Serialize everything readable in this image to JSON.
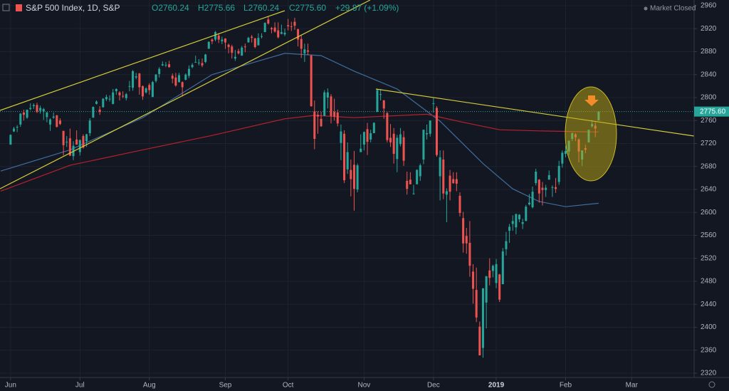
{
  "chart_data": {
    "type": "candlestick",
    "title": "S&P 500 Index, 1D, S&P",
    "ohlc_labels": [
      "O2760.24",
      "H2775.66",
      "L2760.24",
      "C2775.60"
    ],
    "change_label": "+29.87 (+1.09%)",
    "status": "Market Closed",
    "up_color": "#26a69a",
    "down_color": "#ef5350",
    "grid": true,
    "ylim": [
      2320,
      2960
    ],
    "yticks": [
      2320,
      2360,
      2400,
      2440,
      2480,
      2520,
      2560,
      2600,
      2640,
      2680,
      2720,
      2760,
      2800,
      2840,
      2880,
      2920,
      2960
    ],
    "xlim": [
      -3.2,
      206.9
    ],
    "xticks": [
      {
        "value": 0,
        "label": "Jun"
      },
      {
        "value": 21,
        "label": "Jul"
      },
      {
        "value": 42,
        "label": "Aug"
      },
      {
        "value": 65,
        "label": "Sep"
      },
      {
        "value": 84,
        "label": "Oct"
      },
      {
        "value": 107,
        "label": "Nov"
      },
      {
        "value": 128,
        "label": "Dec"
      },
      {
        "value": 147,
        "label": "2019"
      },
      {
        "value": 168,
        "label": "Feb"
      },
      {
        "value": 188,
        "label": "Mar"
      }
    ],
    "price_label": {
      "value": 2775.6,
      "label": "2775.60"
    },
    "open": [
      2718,
      2741,
      2748,
      2753,
      2774,
      2765,
      2780,
      2785,
      2787,
      2777,
      2776,
      2766,
      2753,
      2765,
      2769,
      2760,
      2742,
      2722,
      2729,
      2698,
      2727,
      2705,
      2733,
      2724,
      2738,
      2765,
      2789,
      2779,
      2783,
      2797,
      2797,
      2789,
      2811,
      2809,
      2803,
      2799,
      2820,
      2817,
      2835,
      2842,
      2820,
      2809,
      2822,
      2801,
      2829,
      2841,
      2856,
      2856,
      2858,
      2838,
      2835,
      2827,
      2827,
      2831,
      2838,
      2853,
      2861,
      2860,
      2860,
      2862,
      2885,
      2901,
      2901,
      2908,
      2898,
      2903,
      2892,
      2889,
      2868,
      2881,
      2873,
      2889,
      2896,
      2906,
      2903,
      2891,
      2906,
      2914,
      2936,
      2921,
      2922,
      2917,
      2911,
      2910,
      2926,
      2924,
      2932,
      2919,
      2902,
      2877,
      2882,
      2873,
      2776,
      2770,
      2763,
      2768,
      2800,
      2802,
      2775,
      2774,
      2721,
      2737,
      2675,
      2674,
      2683,
      2640,
      2705,
      2718,
      2745,
      2727,
      2738,
      2775,
      2806,
      2795,
      2773,
      2730,
      2737,
      2693,
      2719,
      2731,
      2655,
      2657,
      2633,
      2649,
      2663,
      2692,
      2736,
      2737,
      2790,
      2782,
      2663,
      2692,
      2631,
      2664,
      2658,
      2658,
      2629,
      2590,
      2559,
      2547,
      2497,
      2465,
      2401,
      2364,
      2443,
      2499,
      2498,
      2477,
      2492,
      2475,
      2536,
      2568,
      2580,
      2574,
      2588,
      2580,
      2585,
      2614,
      2609,
      2651,
      2657,
      2643,
      2639,
      2657,
      2644,
      2644,
      2653,
      2685,
      2702,
      2706,
      2728,
      2736,
      2727,
      2692,
      2712,
      2722,
      2750,
      2751,
      2760.24
    ],
    "high": [
      2736,
      2749,
      2752,
      2773,
      2779,
      2779,
      2790,
      2790,
      2791,
      2786,
      2782,
      2775,
      2764,
      2774,
      2770,
      2764,
      2742,
      2733,
      2746,
      2724,
      2743,
      2727,
      2736,
      2737,
      2764,
      2784,
      2795,
      2785,
      2799,
      2805,
      2804,
      2815,
      2816,
      2811,
      2811,
      2808,
      2829,
      2848,
      2843,
      2843,
      2821,
      2818,
      2825,
      2829,
      2841,
      2853,
      2863,
      2862,
      2864,
      2842,
      2843,
      2843,
      2828,
      2842,
      2856,
      2860,
      2873,
      2867,
      2868,
      2876,
      2898,
      2903,
      2916,
      2912,
      2906,
      2903,
      2894,
      2892,
      2883,
      2885,
      2890,
      2894,
      2906,
      2909,
      2904,
      2912,
      2912,
      2931,
      2941,
      2923,
      2931,
      2931,
      2927,
      2920,
      2937,
      2932,
      2939,
      2920,
      2909,
      2894,
      2894,
      2875,
      2795,
      2776,
      2775,
      2813,
      2816,
      2806,
      2798,
      2779,
      2753,
      2743,
      2722,
      2692,
      2707,
      2685,
      2736,
      2741,
      2756,
      2744,
      2757,
      2815,
      2815,
      2796,
      2775,
      2754,
      2747,
      2735,
      2747,
      2742,
      2671,
      2670,
      2648,
      2675,
      2685,
      2744,
      2753,
      2760,
      2800,
      2785,
      2708,
      2708,
      2642,
      2674,
      2670,
      2670,
      2635,
      2601,
      2573,
      2585,
      2510,
      2504,
      2410,
      2467,
      2489,
      2520,
      2509,
      2519,
      2493,
      2538,
      2566,
      2580,
      2595,
      2598,
      2597,
      2589,
      2613,
      2632,
      2645,
      2676,
      2658,
      2653,
      2648,
      2673,
      2647,
      2660,
      2690,
      2708,
      2716,
      2725,
      2739,
      2738,
      2729,
      2708,
      2718,
      2744,
      2761,
      2757,
      2775.66
    ],
    "low": [
      2718,
      2740,
      2740,
      2749,
      2760,
      2763,
      2778,
      2780,
      2773,
      2772,
      2761,
      2757,
      2742,
      2763,
      2748,
      2752,
      2699,
      2714,
      2698,
      2691,
      2718,
      2699,
      2711,
      2714,
      2733,
      2765,
      2788,
      2770,
      2783,
      2794,
      2793,
      2788,
      2805,
      2795,
      2799,
      2795,
      2811,
      2812,
      2832,
      2805,
      2796,
      2807,
      2805,
      2801,
      2826,
      2835,
      2855,
      2853,
      2852,
      2825,
      2819,
      2826,
      2802,
      2830,
      2834,
      2851,
      2861,
      2856,
      2853,
      2860,
      2885,
      2893,
      2898,
      2895,
      2893,
      2885,
      2877,
      2868,
      2864,
      2875,
      2873,
      2879,
      2896,
      2896,
      2886,
      2891,
      2903,
      2914,
      2927,
      2912,
      2913,
      2903,
      2910,
      2907,
      2917,
      2916,
      2918,
      2889,
      2869,
      2862,
      2874,
      2784,
      2710,
      2737,
      2749,
      2768,
      2781,
      2755,
      2760,
      2750,
      2691,
      2651,
      2667,
      2628,
      2603,
      2635,
      2705,
      2708,
      2700,
      2722,
      2738,
      2775,
      2795,
      2763,
      2722,
      2714,
      2685,
      2670,
      2715,
      2681,
      2631,
      2649,
      2631,
      2649,
      2655,
      2684,
      2727,
      2732,
      2774,
      2697,
      2621,
      2623,
      2583,
      2621,
      2650,
      2637,
      2593,
      2530,
      2528,
      2488,
      2441,
      2409,
      2351,
      2347,
      2398,
      2473,
      2487,
      2468,
      2444,
      2475,
      2525,
      2547,
      2568,
      2562,
      2583,
      2571,
      2585,
      2612,
      2607,
      2647,
      2617,
      2612,
      2627,
      2657,
      2627,
      2634,
      2648,
      2678,
      2696,
      2700,
      2724,
      2724,
      2687,
      2681,
      2703,
      2722,
      2748,
      2731,
      2760.24
    ],
    "close": [
      2735,
      2746,
      2749,
      2772,
      2770,
      2779,
      2782,
      2787,
      2775,
      2782,
      2780,
      2774,
      2762,
      2767,
      2749,
      2754,
      2717,
      2723,
      2699,
      2716,
      2718,
      2726,
      2713,
      2736,
      2760,
      2784,
      2793,
      2775,
      2798,
      2801,
      2798,
      2809,
      2815,
      2804,
      2802,
      2806,
      2820,
      2846,
      2837,
      2818,
      2802,
      2816,
      2813,
      2827,
      2840,
      2850,
      2858,
      2857,
      2853,
      2833,
      2821,
      2839,
      2818,
      2840,
      2850,
      2857,
      2862,
      2861,
      2856,
      2875,
      2897,
      2898,
      2914,
      2901,
      2901,
      2896,
      2888,
      2878,
      2871,
      2877,
      2887,
      2888,
      2904,
      2904,
      2888,
      2904,
      2907,
      2930,
      2929,
      2919,
      2915,
      2905,
      2914,
      2913,
      2924,
      2923,
      2925,
      2901,
      2885,
      2884,
      2880,
      2785,
      2728,
      2767,
      2750,
      2809,
      2809,
      2768,
      2767,
      2755,
      2741,
      2656,
      2705,
      2658,
      2641,
      2682,
      2711,
      2740,
      2723,
      2738,
      2756,
      2813,
      2806,
      2781,
      2726,
      2722,
      2702,
      2730,
      2736,
      2690,
      2641,
      2649,
      2633,
      2674,
      2682,
      2744,
      2738,
      2760,
      2790,
      2700,
      2696,
      2633,
      2637,
      2636,
      2651,
      2650,
      2599,
      2546,
      2546,
      2507,
      2467,
      2417,
      2351,
      2468,
      2489,
      2486,
      2507,
      2510,
      2448,
      2532,
      2550,
      2575,
      2585,
      2597,
      2596,
      2583,
      2610,
      2617,
      2636,
      2671,
      2633,
      2639,
      2643,
      2665,
      2644,
      2641,
      2681,
      2704,
      2707,
      2725,
      2738,
      2731,
      2706,
      2708,
      2709,
      2744,
      2754,
      2746,
      2775.6
    ],
    "lines": [
      {
        "color": "#3f6d9e",
        "x": [
          -3,
          18,
          40,
          61,
          83,
          94,
          104,
          117,
          130,
          143,
          152,
          160,
          168,
          178
        ],
        "values": [
          2672,
          2709,
          2765,
          2840,
          2877,
          2873,
          2846,
          2815,
          2759,
          2685,
          2641,
          2619,
          2610,
          2616
        ]
      },
      {
        "color": "#b5222d",
        "x": [
          -3,
          18,
          40,
          61,
          83,
          92,
          104,
          126,
          137,
          148,
          160,
          178
        ],
        "values": [
          2637,
          2682,
          2709,
          2734,
          2763,
          2769,
          2765,
          2771,
          2757,
          2744,
          2742,
          2740
        ]
      }
    ]
  }
}
